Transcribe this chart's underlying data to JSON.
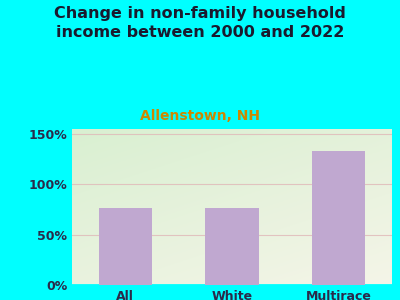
{
  "categories": [
    "All",
    "White",
    "Multirace"
  ],
  "values": [
    77,
    77,
    133
  ],
  "bar_color": "#C0A8D0",
  "title": "Change in non-family household\nincome between 2000 and 2022",
  "subtitle": "Allenstown, NH",
  "title_color": "#1a1a2e",
  "subtitle_color": "#cc8800",
  "background_color": "#00FFFF",
  "plot_bg_color_topleft": "#d8f0d0",
  "plot_bg_color_bottomright": "#f5f5e8",
  "ylabel_ticks": [
    0,
    50,
    100,
    150
  ],
  "ylim": [
    0,
    155
  ],
  "grid_line_color": "#e0b8b8",
  "axis_label_color": "#2a2a4a",
  "tick_label_fontsize": 9,
  "title_fontsize": 11.5,
  "subtitle_fontsize": 10,
  "bar_width": 0.5
}
